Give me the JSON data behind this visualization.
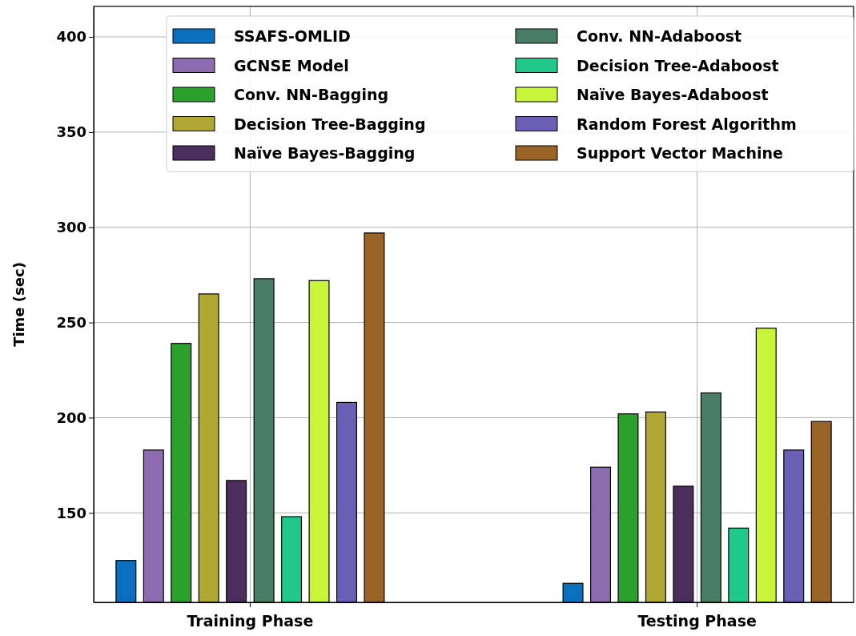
{
  "chart_data": {
    "type": "bar",
    "ylabel": "Time (sec)",
    "categories": [
      "Training Phase",
      "Testing Phase"
    ],
    "ylim": [
      103,
      416
    ],
    "yticks": [
      150,
      200,
      250,
      300,
      350,
      400
    ],
    "grid": true,
    "legend": "top",
    "series": [
      {
        "name": "SSAFS-OMLID",
        "color": "#0a6fbd",
        "values": [
          125,
          113
        ]
      },
      {
        "name": "GCNSE Model",
        "color": "#8c6bb1",
        "values": [
          183,
          174
        ]
      },
      {
        "name": "Conv. NN-Bagging",
        "color": "#2ca02c",
        "values": [
          239,
          202
        ]
      },
      {
        "name": "Decision Tree-Bagging",
        "color": "#b0a832",
        "values": [
          265,
          203
        ]
      },
      {
        "name": "Naïve Bayes-Bagging",
        "color": "#4b2e5e",
        "values": [
          167,
          164
        ]
      },
      {
        "name": "Conv. NN-Adaboost",
        "color": "#4a7d66",
        "values": [
          273,
          213
        ]
      },
      {
        "name": "Decision Tree-Adaboost",
        "color": "#20c98a",
        "values": [
          148,
          142
        ]
      },
      {
        "name": "Naïve Bayes-Adaboost",
        "color": "#c8f53a",
        "values": [
          272,
          247
        ]
      },
      {
        "name": "Random Forest Algorithm",
        "color": "#6a5fb5",
        "values": [
          208,
          183
        ]
      },
      {
        "name": "Support Vector Machine",
        "color": "#9a6428",
        "values": [
          297,
          198
        ]
      }
    ]
  }
}
